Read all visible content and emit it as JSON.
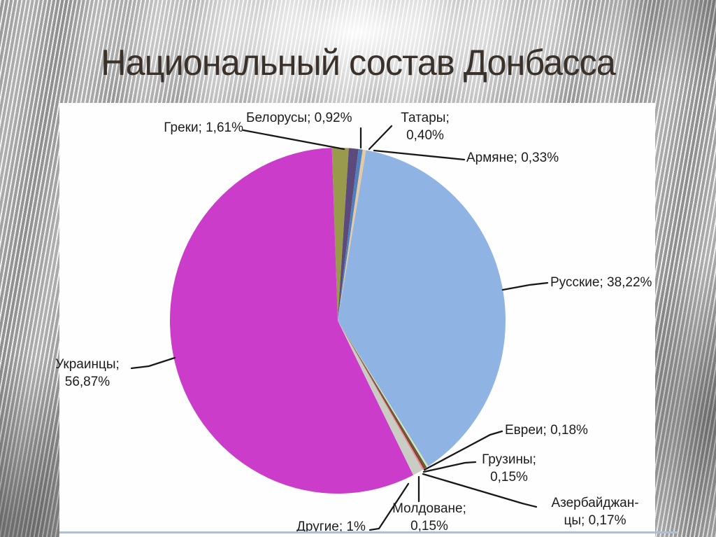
{
  "title": "Национальный состав Донбасса",
  "panel_color": "#fefefe",
  "accent_line_color": "#a9c2da",
  "chart_data": {
    "type": "pie",
    "title": "Национальный состав Донбасса",
    "unit": "%",
    "decimal_separator": ",",
    "direction": "clockwise",
    "start_angle_deg": -2,
    "legend_position": "callout-labels",
    "slices": [
      {
        "id": "greki",
        "label": "Греки",
        "value": 1.61,
        "display": "Греки; 1,61%",
        "lines": [
          "Греки; 1,61%"
        ],
        "color": "#9a9a4c"
      },
      {
        "id": "belorusy",
        "label": "Белорусы",
        "value": 0.92,
        "display": "Белорусы; 0,92%",
        "lines": [
          "Белорусы; 0,92%"
        ],
        "color": "#5c4a7d"
      },
      {
        "id": "tatary",
        "label": "Татары",
        "value": 0.4,
        "display": "Татары; 0,40%",
        "lines": [
          "Татары;",
          "0,40%"
        ],
        "color": "#4f81bd"
      },
      {
        "id": "armyane",
        "label": "Армяне",
        "value": 0.33,
        "display": "Армяне; 0,33%",
        "lines": [
          "Армяне; 0,33%"
        ],
        "color": "#e5c8a4"
      },
      {
        "id": "russkie",
        "label": "Русские",
        "value": 38.22,
        "display": "Русские; 38,22%",
        "lines": [
          "Русские; 38,22%"
        ],
        "color": "#8fb3e2"
      },
      {
        "id": "evrei",
        "label": "Евреи",
        "value": 0.18,
        "display": "Евреи; 0,18%",
        "lines": [
          "Евреи; 0,18%"
        ],
        "color": "#d6e2c4"
      },
      {
        "id": "gruziny",
        "label": "Грузины",
        "value": 0.15,
        "display": "Грузины; 0,15%",
        "lines": [
          "Грузины;",
          "0,15%"
        ],
        "color": "#4e6127"
      },
      {
        "id": "azerbaydzhantsy",
        "label": "Азербайджанцы",
        "value": 0.17,
        "display": "Азербайджанцы; 0,17%",
        "lines": [
          "Азербайджан-",
          "цы; 0,17%"
        ],
        "color": "#943634"
      },
      {
        "id": "moldovane",
        "label": "Молдоване",
        "value": 0.15,
        "display": "Молдоване; 0,15%",
        "lines": [
          "Молдоване;",
          "0,15%"
        ],
        "color": "#d99694"
      },
      {
        "id": "drugie",
        "label": "Другие",
        "value": 1.0,
        "display": "Другие; 1%",
        "lines": [
          "Другие; 1%"
        ],
        "color": "#c9cdc3"
      },
      {
        "id": "ukraintsy",
        "label": "Украинцы",
        "value": 56.87,
        "display": "Украинцы; 56,87%",
        "lines": [
          "Украинцы;",
          "56,87%"
        ],
        "color": "#cb3ccb"
      }
    ]
  }
}
